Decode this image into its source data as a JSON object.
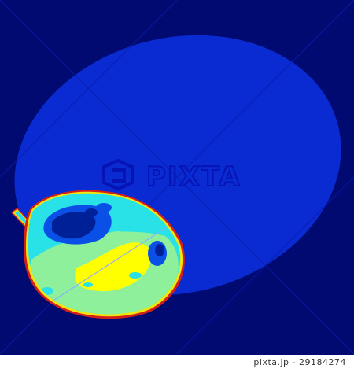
{
  "colors": {
    "background": "#000a70",
    "shadow": "#0a2ad2",
    "fruit_outline_red": "#d4201a",
    "fruit_outline_yellow": "#f2e60c",
    "fruit_cyan": "#28e2e8",
    "fruit_light_green": "#8ef09a",
    "fruit_hot_yellow": "#ffff00",
    "fruit_cool_blue": "#0a50e6",
    "fruit_dark_blue": "#002098",
    "watermark": "#0614b4"
  },
  "watermark": {
    "brand_text": "PIXTA",
    "icon": "pixta-logo-icon"
  },
  "footer": {
    "credit": "pixta.jp - 29184274"
  }
}
